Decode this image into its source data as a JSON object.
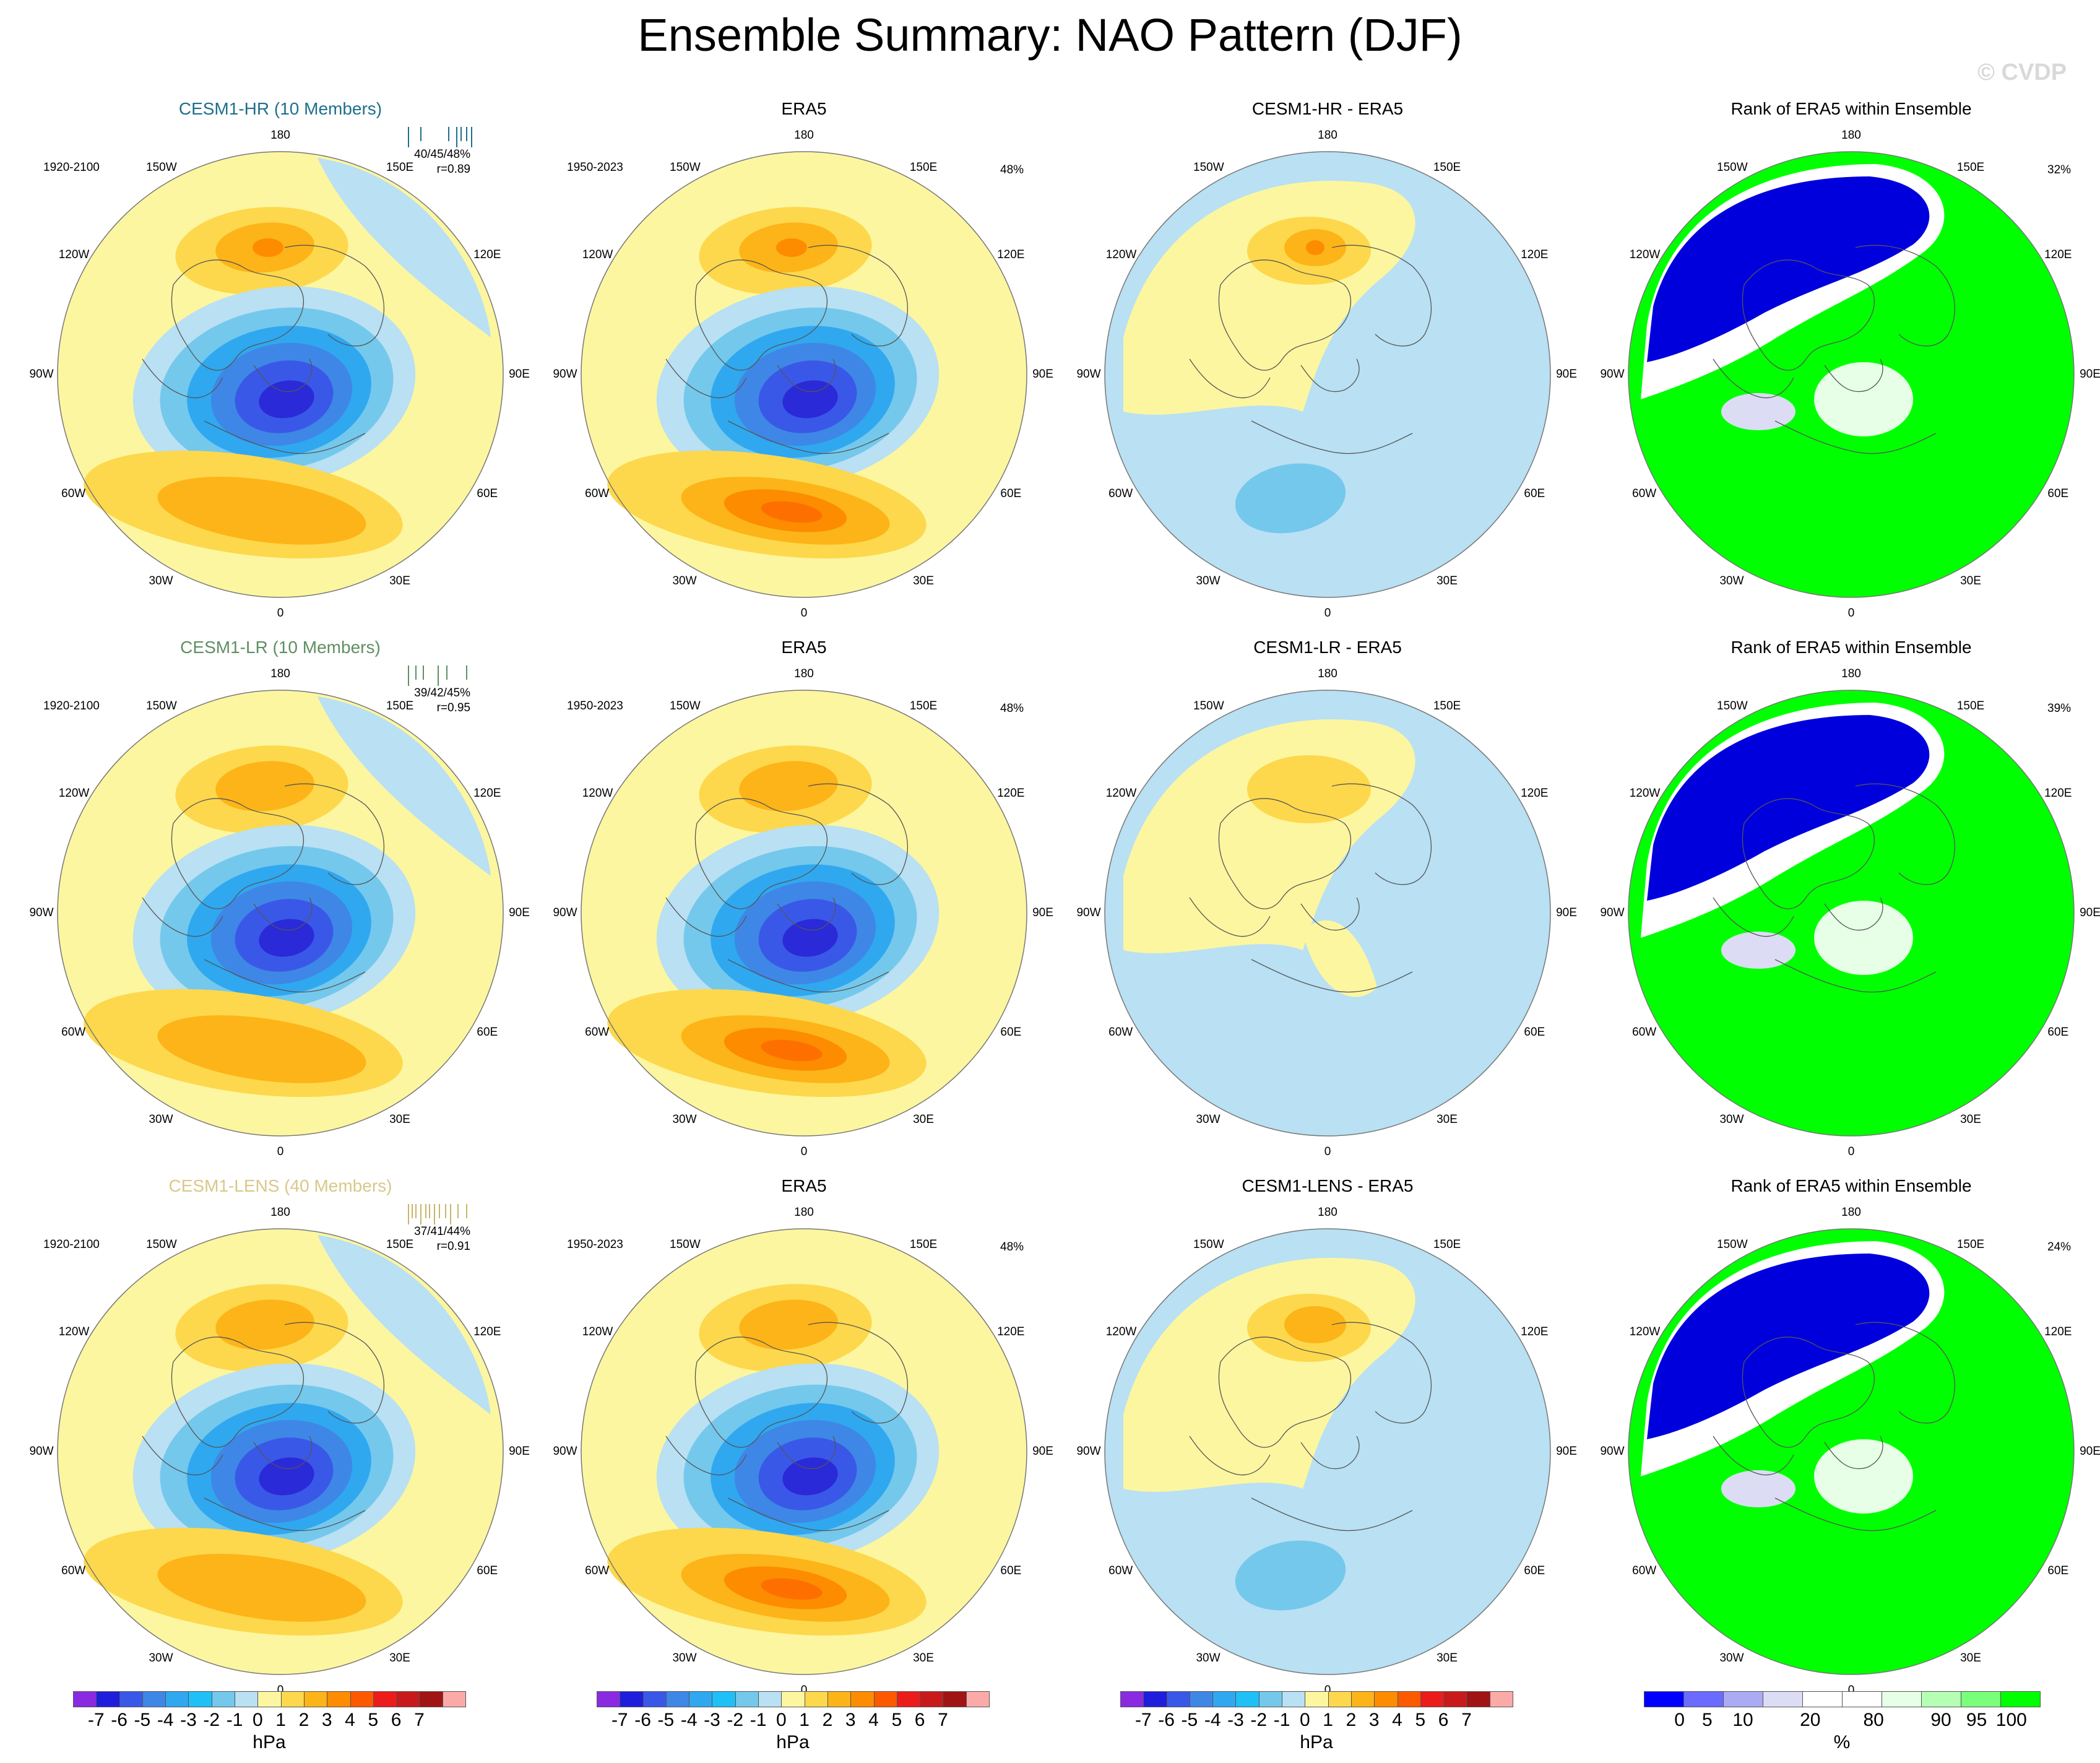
{
  "title": "Ensemble Summary: NAO Pattern (DJF)",
  "watermark": "© CVDP",
  "longitude_labels": [
    "180",
    "150E",
    "120E",
    "90E",
    "60E",
    "30E",
    "0",
    "30W",
    "60W",
    "90W",
    "120W",
    "150W"
  ],
  "rows": [
    {
      "model": {
        "title": "CESM1-HR (10 Members)",
        "title_color": "#1f6f8b",
        "years": "1920-2100",
        "stats": "40/45/48%",
        "corr": "r=0.89",
        "strip_color": "#1f6f8b"
      },
      "obs": {
        "title": "ERA5",
        "years": "1950-2023",
        "pct": "48%"
      },
      "diff": {
        "title": "CESM1-HR - ERA5"
      },
      "rank": {
        "title": "Rank of ERA5 within Ensemble",
        "pct": "32%"
      }
    },
    {
      "model": {
        "title": "CESM1-LR (10 Members)",
        "title_color": "#5f8f63",
        "years": "1920-2100",
        "stats": "39/42/45%",
        "corr": "r=0.95",
        "strip_color": "#5f8f63"
      },
      "obs": {
        "title": "ERA5",
        "years": "1950-2023",
        "pct": "48%"
      },
      "diff": {
        "title": "CESM1-LR - ERA5"
      },
      "rank": {
        "title": "Rank of ERA5 within Ensemble",
        "pct": "39%"
      }
    },
    {
      "model": {
        "title": "CESM1-LENS (40 Members)",
        "title_color": "#d9c88a",
        "years": "1920-2100",
        "stats": "37/41/44%",
        "corr": "r=0.91",
        "strip_color": "#c8b46a"
      },
      "obs": {
        "title": "ERA5",
        "years": "1950-2023",
        "pct": "48%"
      },
      "diff": {
        "title": "CESM1-LENS - ERA5"
      },
      "rank": {
        "title": "Rank of ERA5 within Ensemble",
        "pct": "24%"
      }
    }
  ],
  "colorbar_hpa": {
    "colors": [
      "#8a2be2",
      "#1e1edc",
      "#3a58e8",
      "#3f87e6",
      "#2fa8f0",
      "#1ec0f5",
      "#74c8ec",
      "#b9e0f3",
      "#fdf6a0",
      "#fdd84c",
      "#fdb418",
      "#fd8c00",
      "#fd5a00",
      "#ec1c1c",
      "#c81a1a",
      "#a01414",
      "#fcaaa8"
    ],
    "ticks": [
      "-7",
      "-6",
      "-5",
      "-4",
      "-3",
      "-2",
      "-1",
      "0",
      "1",
      "2",
      "3",
      "4",
      "5",
      "6",
      "7"
    ],
    "unit": "hPa"
  },
  "colorbar_pct": {
    "colors": [
      "#0000ff",
      "#6b6bff",
      "#aaaaf5",
      "#dcdcf5",
      "#ffffff",
      "#ffffff",
      "#e6ffe6",
      "#b4ffb4",
      "#7aff7a",
      "#00ff00"
    ],
    "ticks": [
      "0",
      "5",
      "10",
      "20",
      "80",
      "90",
      "95",
      "100"
    ],
    "unit": "%"
  }
}
